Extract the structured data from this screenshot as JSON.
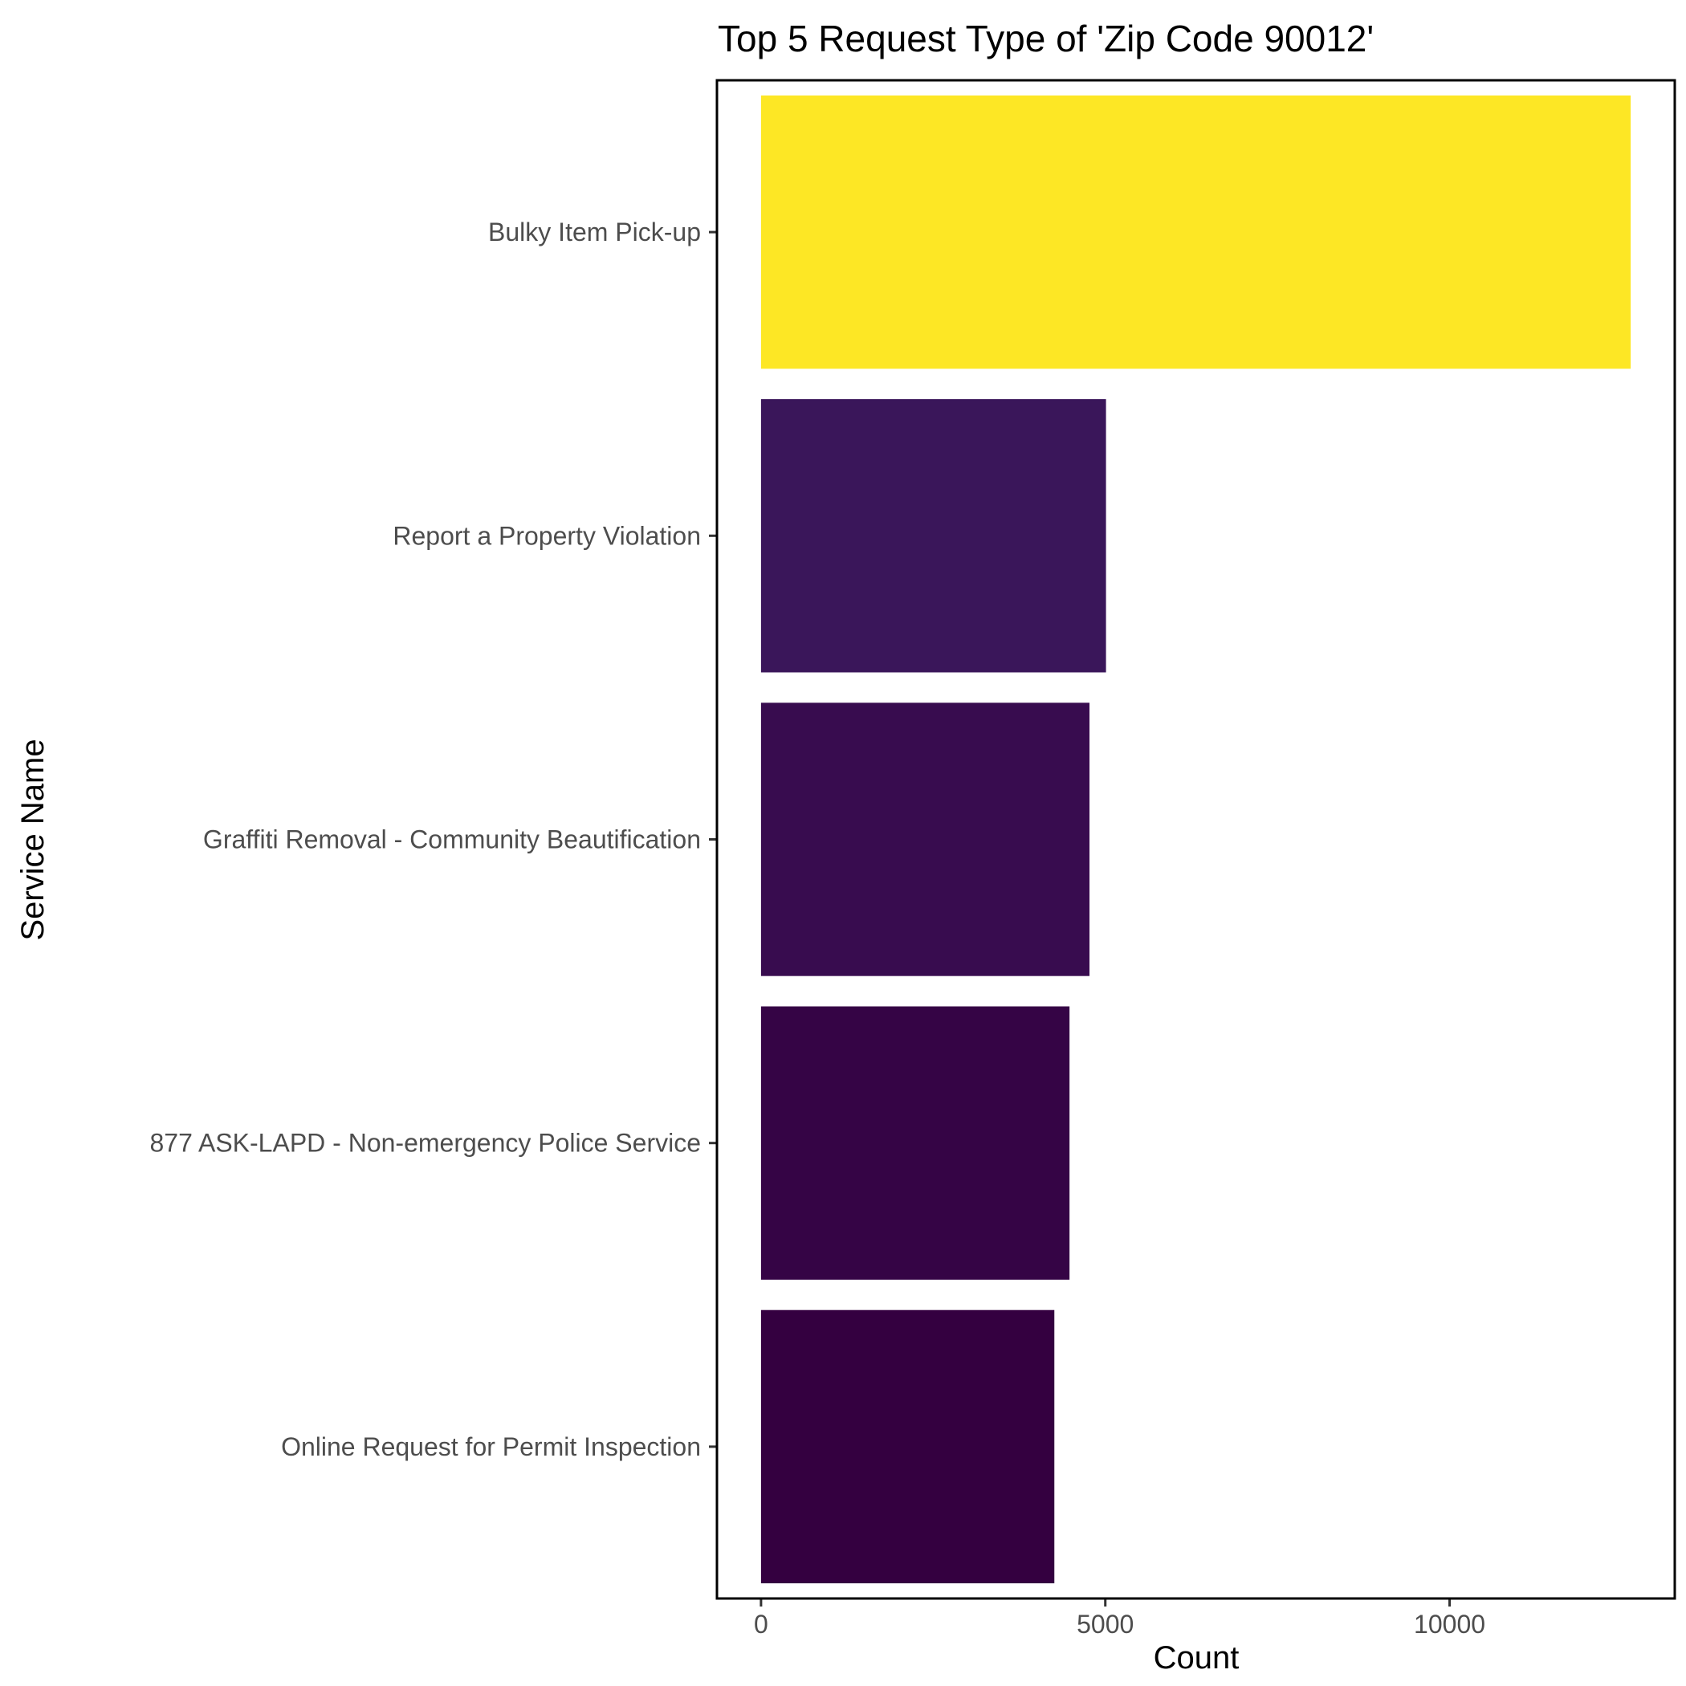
{
  "chart_data": {
    "type": "bar",
    "orientation": "horizontal",
    "title": "Top 5 Request Type of 'Zip Code 90012'",
    "xlabel": "Count",
    "ylabel": "Service Name",
    "categories": [
      "Bulky Item Pick-up",
      "Report a Property Violation",
      "Graffiti Removal - Community Beautification",
      "877 ASK-LAPD - Non-emergency Police Service",
      "Online Request for Permit Inspection"
    ],
    "values": [
      12630,
      5010,
      4770,
      4480,
      4260
    ],
    "colors": [
      "#FDE725",
      "#3A165A",
      "#380C4F",
      "#350445",
      "#340040"
    ],
    "xlim": [
      -640,
      13270
    ],
    "xticks": [
      0,
      5000,
      10000
    ],
    "xtick_labels": [
      "0",
      "5000",
      "10000"
    ],
    "grid": false,
    "legend": "none"
  }
}
